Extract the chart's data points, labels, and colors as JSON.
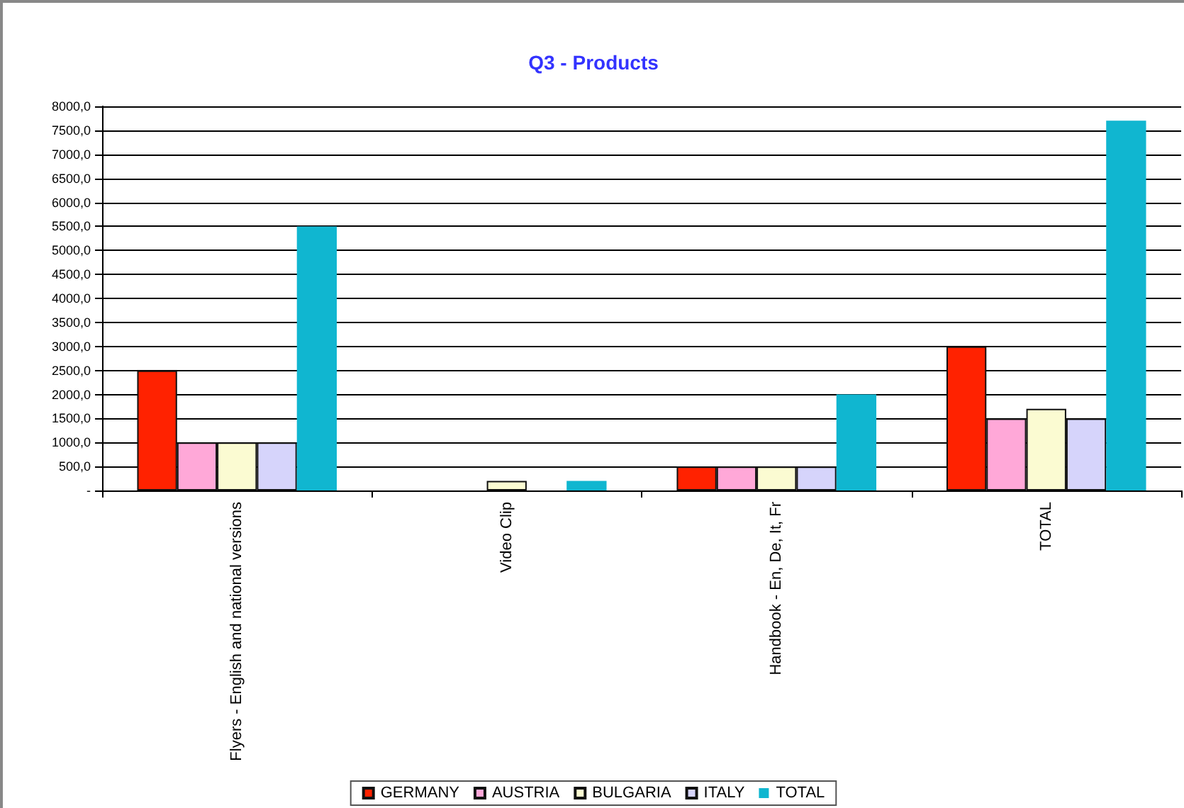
{
  "chart_data": {
    "type": "bar",
    "title": "Q3 - Products",
    "categories": [
      "Flyers - English and national versions",
      "Video Clip",
      "Handbook - En, De, It, Fr",
      "TOTAL"
    ],
    "series": [
      {
        "name": "GERMANY",
        "color": "#ff2200",
        "values": [
          2500,
          0,
          500,
          3000
        ]
      },
      {
        "name": "AUSTRIA",
        "color": "#ffa8d8",
        "values": [
          1000,
          0,
          500,
          1500
        ]
      },
      {
        "name": "BULGARIA",
        "color": "#fbfbd2",
        "values": [
          1000,
          200,
          500,
          1700
        ]
      },
      {
        "name": "ITALY",
        "color": "#d6d4fb",
        "values": [
          1000,
          0,
          500,
          1500
        ]
      },
      {
        "name": "TOTAL",
        "color": "#10b6d0",
        "values": [
          5500,
          200,
          2000,
          7700
        ]
      }
    ],
    "ylim": [
      0,
      8000
    ],
    "yticks": [
      {
        "value": 0,
        "label": "-"
      },
      {
        "value": 500,
        "label": "500,0"
      },
      {
        "value": 1000,
        "label": "1000,0"
      },
      {
        "value": 1500,
        "label": "1500,0"
      },
      {
        "value": 2000,
        "label": "2000,0"
      },
      {
        "value": 2500,
        "label": "2500,0"
      },
      {
        "value": 3000,
        "label": "3000,0"
      },
      {
        "value": 3500,
        "label": "3500,0"
      },
      {
        "value": 4000,
        "label": "4000,0"
      },
      {
        "value": 4500,
        "label": "4500,0"
      },
      {
        "value": 5000,
        "label": "5000,0"
      },
      {
        "value": 5500,
        "label": "5500,0"
      },
      {
        "value": 6000,
        "label": "6000,0"
      },
      {
        "value": 6500,
        "label": "6500,0"
      },
      {
        "value": 7000,
        "label": "7000,0"
      },
      {
        "value": 7500,
        "label": "7500,0"
      },
      {
        "value": 8000,
        "label": "8000,0"
      }
    ],
    "grid": "y",
    "legend": "bottom"
  }
}
